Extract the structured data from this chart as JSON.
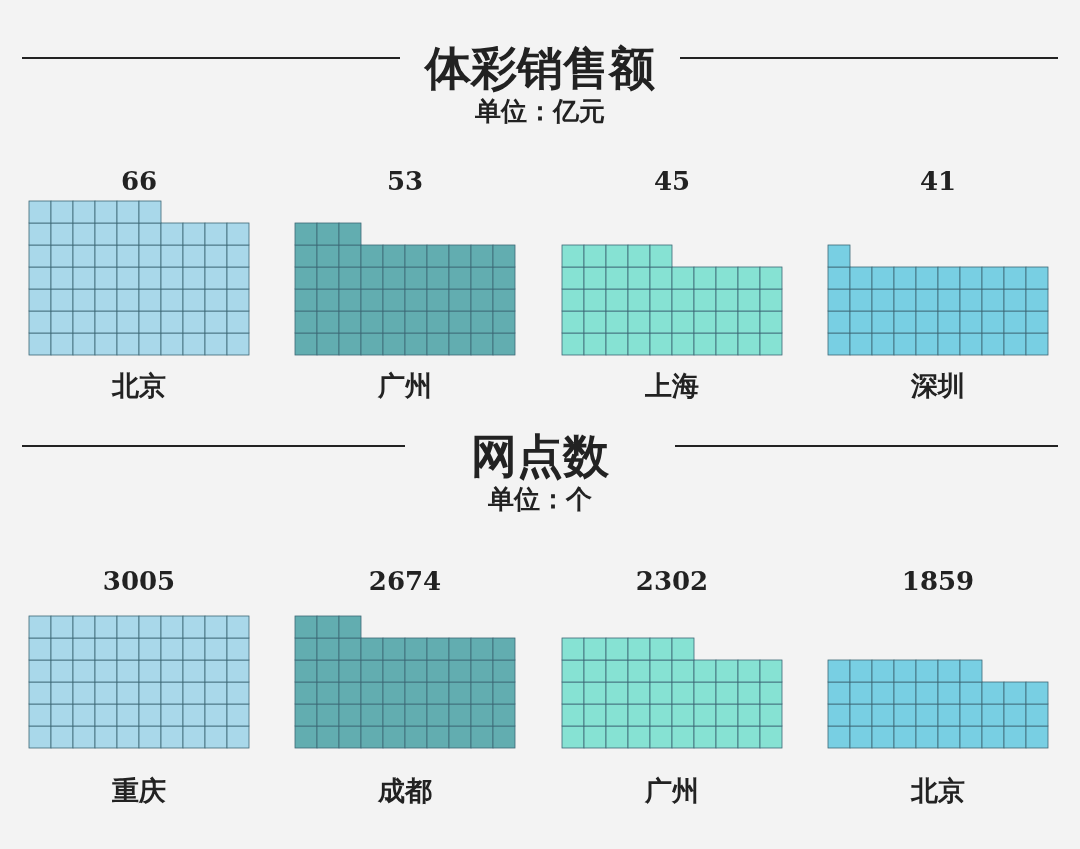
{
  "chart_data": [
    {
      "type": "other",
      "title": "体彩销售额",
      "subtitle": "单位：亿元",
      "categories": [
        "北京",
        "广州",
        "上海",
        "深圳"
      ],
      "values": [
        66,
        53,
        45,
        41
      ],
      "colors": [
        "#a9d8ea",
        "#62adb0",
        "#86e2d3",
        "#78cfe3"
      ],
      "data_labels": true
    },
    {
      "type": "other",
      "title": "网点数",
      "subtitle": "单位：个",
      "categories": [
        "重庆",
        "成都",
        "广州",
        "北京"
      ],
      "values": [
        3005,
        2674,
        2302,
        1859
      ],
      "colors": [
        "#a9d8ea",
        "#62adb0",
        "#86e2d3",
        "#78cfe3"
      ],
      "data_labels": true
    }
  ]
}
